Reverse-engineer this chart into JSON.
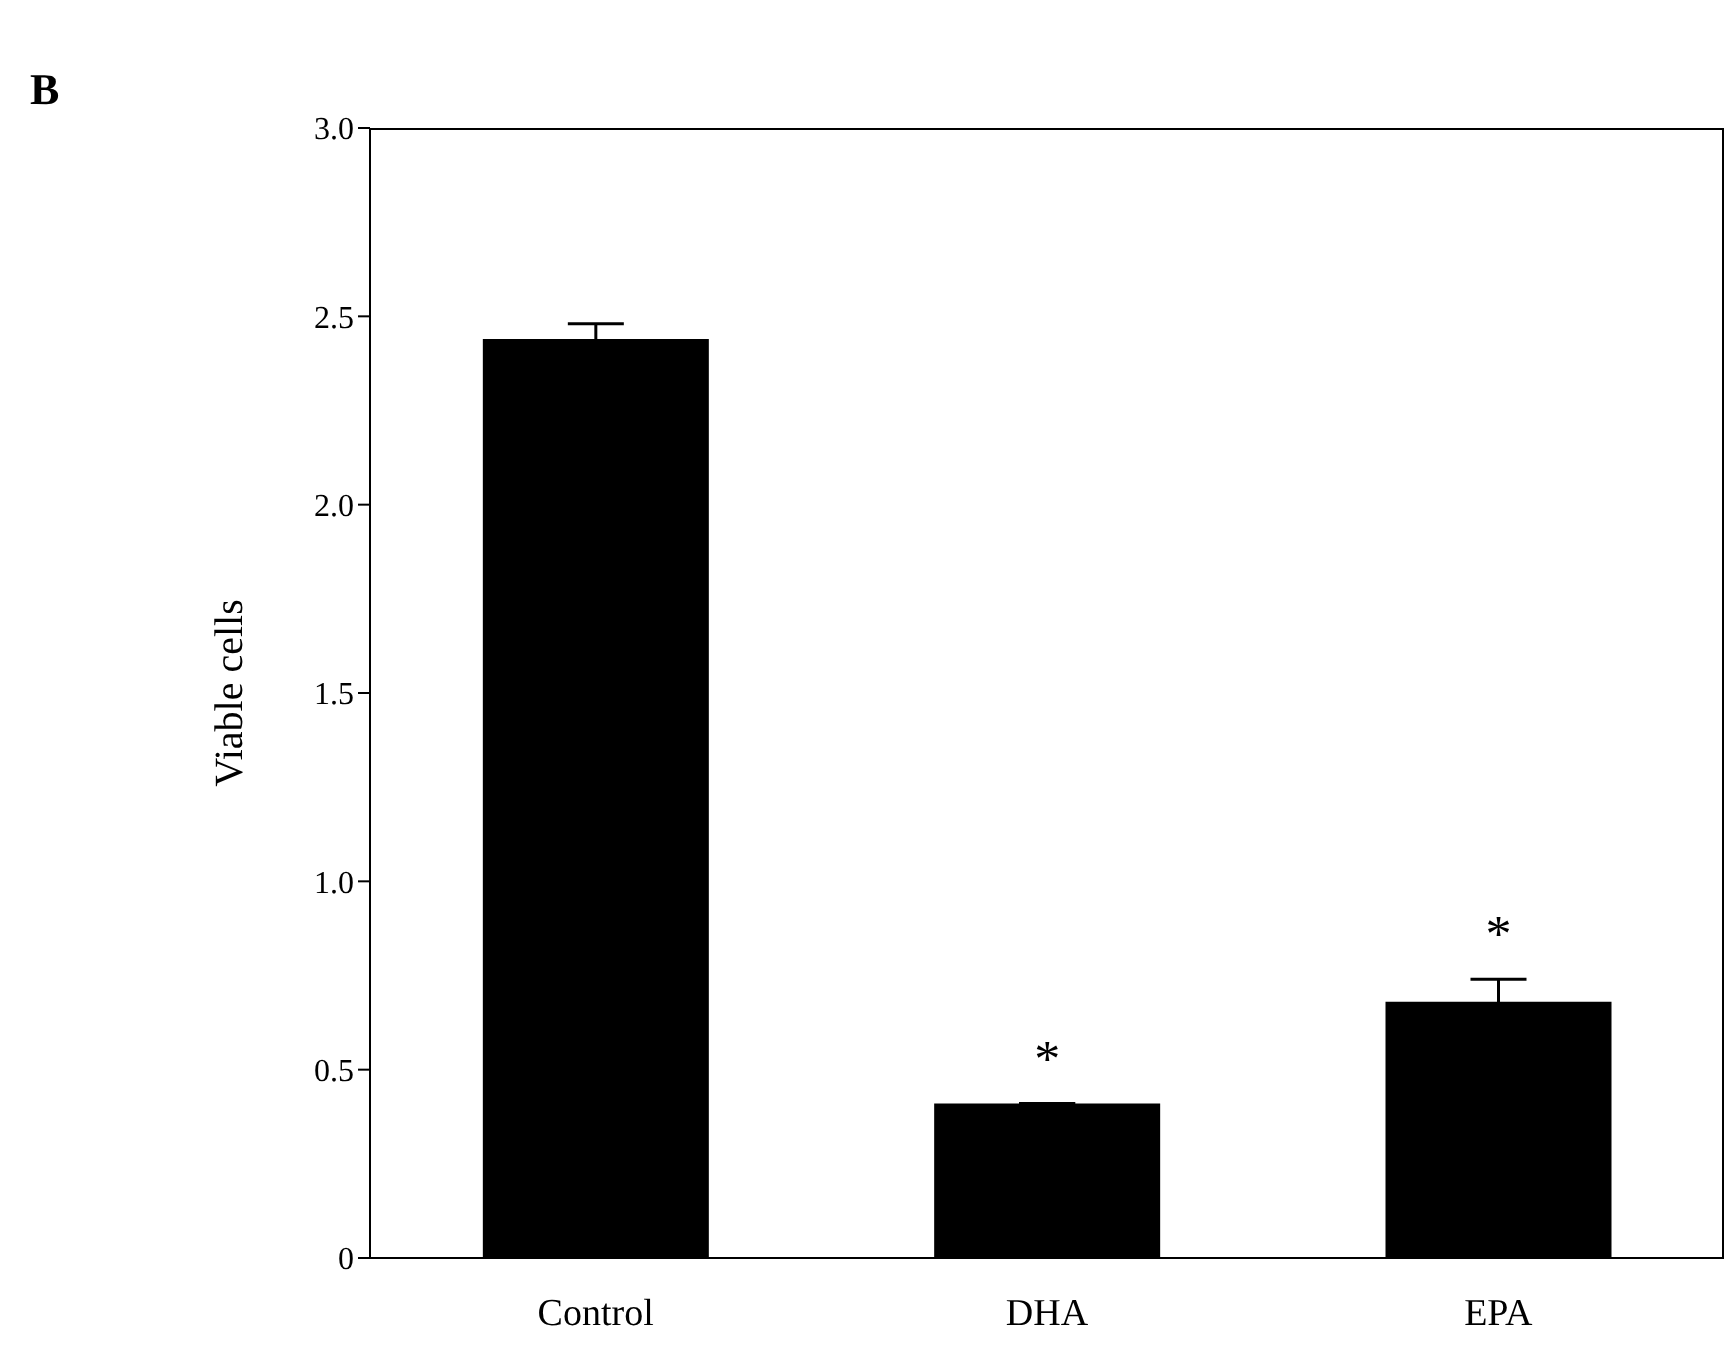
{
  "chart_data": {
    "type": "bar",
    "ylabel": "Viable cells",
    "categories": [
      "Control",
      "DHA",
      "EPA"
    ],
    "values": [
      2.44,
      0.41,
      0.68
    ],
    "errors": [
      0.04,
      null,
      0.06
    ],
    "color": "#000000",
    "ylim": [
      0,
      3
    ],
    "yticks": [
      0,
      {
        "value": 0.5,
        "label": "0.5"
      },
      {
        "value": 1,
        "label": "1.0"
      },
      {
        "value": 1.5,
        "label": "1.5"
      },
      {
        "value": 2,
        "label": "2.0"
      },
      {
        "value": 2.5,
        "label": "2.5"
      },
      {
        "value": 3,
        "label": "3.0"
      }
    ],
    "grid": false,
    "legend": false,
    "value_labels": [
      null,
      "*",
      "*"
    ],
    "annotations": [
      "B"
    ]
  }
}
